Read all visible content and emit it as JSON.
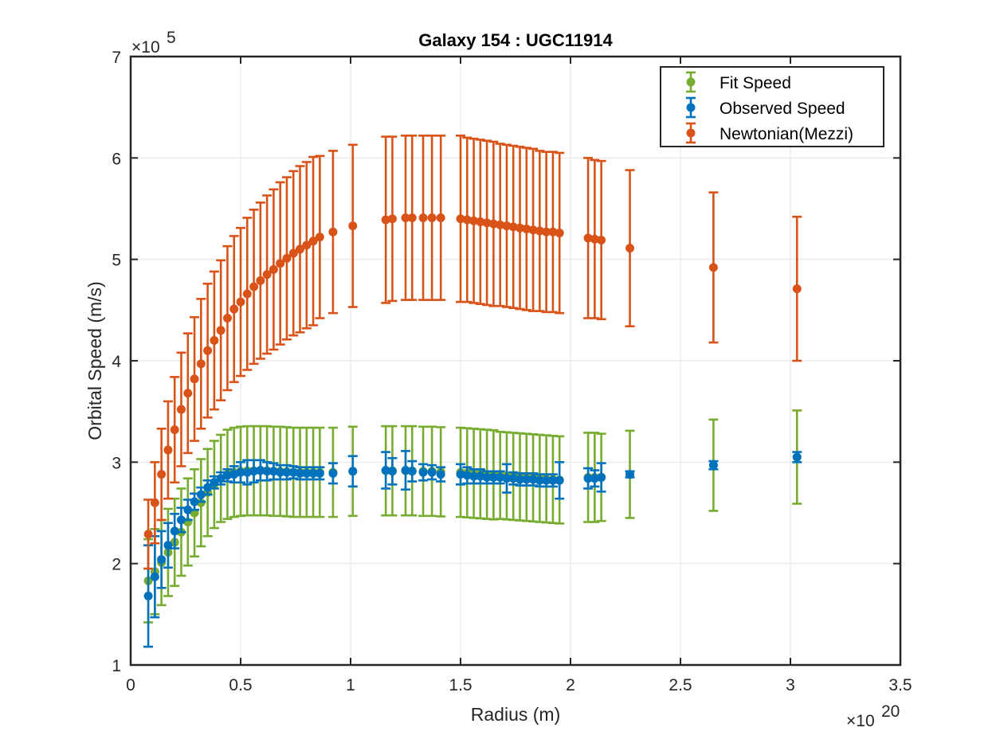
{
  "chart_data": {
    "type": "scatter",
    "title": "Galaxy 154 : UGC11914",
    "xlabel": "Radius (m)",
    "ylabel": "Orbital Speed (m/s)",
    "x_exponent_label": "×10",
    "x_exponent_power": "20",
    "y_exponent_label": "×10",
    "y_exponent_power": "5",
    "xlim": [
      0,
      3.5
    ],
    "ylim": [
      1,
      7
    ],
    "x_scale_factor": "1e20",
    "y_scale_factor": "1e5",
    "xticks": [
      0,
      0.5,
      1,
      1.5,
      2,
      2.5,
      3,
      3.5
    ],
    "xtick_labels": [
      "0",
      "0.5",
      "1",
      "1.5",
      "2",
      "2.5",
      "3",
      "3.5"
    ],
    "yticks": [
      1,
      2,
      3,
      4,
      5,
      6,
      7
    ],
    "ytick_labels": [
      "1",
      "2",
      "3",
      "4",
      "5",
      "6",
      "7"
    ],
    "grid": true,
    "legend_position": "top-right",
    "x": [
      0.08,
      0.11,
      0.14,
      0.17,
      0.2,
      0.23,
      0.26,
      0.29,
      0.32,
      0.35,
      0.38,
      0.41,
      0.44,
      0.47,
      0.5,
      0.53,
      0.56,
      0.59,
      0.62,
      0.65,
      0.68,
      0.71,
      0.74,
      0.77,
      0.8,
      0.83,
      0.86,
      0.92,
      1.01,
      1.16,
      1.19,
      1.25,
      1.28,
      1.33,
      1.37,
      1.41,
      1.5,
      1.53,
      1.56,
      1.59,
      1.62,
      1.65,
      1.68,
      1.71,
      1.74,
      1.77,
      1.8,
      1.83,
      1.86,
      1.89,
      1.92,
      1.95,
      2.08,
      2.11,
      2.14,
      2.27,
      2.65,
      3.03
    ],
    "series": [
      {
        "name": "Fit Speed",
        "color": "#77AC30",
        "values": [
          1.83,
          1.92,
          2.01,
          2.11,
          2.21,
          2.31,
          2.41,
          2.5,
          2.6,
          2.7,
          2.78,
          2.84,
          2.88,
          2.9,
          2.91,
          2.915,
          2.915,
          2.915,
          2.915,
          2.91,
          2.91,
          2.905,
          2.9,
          2.9,
          2.9,
          2.9,
          2.9,
          2.9,
          2.91,
          2.915,
          2.915,
          2.915,
          2.915,
          2.91,
          2.91,
          2.905,
          2.9,
          2.895,
          2.89,
          2.885,
          2.88,
          2.875,
          2.87,
          2.865,
          2.86,
          2.855,
          2.85,
          2.845,
          2.84,
          2.835,
          2.83,
          2.825,
          2.85,
          2.85,
          2.85,
          2.88,
          2.97,
          3.05
        ],
        "errors": [
          0.41,
          0.42,
          0.42,
          0.43,
          0.43,
          0.43,
          0.43,
          0.43,
          0.43,
          0.43,
          0.43,
          0.43,
          0.44,
          0.44,
          0.44,
          0.44,
          0.44,
          0.44,
          0.44,
          0.44,
          0.44,
          0.44,
          0.44,
          0.44,
          0.44,
          0.44,
          0.44,
          0.44,
          0.44,
          0.44,
          0.44,
          0.44,
          0.44,
          0.44,
          0.44,
          0.44,
          0.44,
          0.44,
          0.44,
          0.44,
          0.44,
          0.44,
          0.43,
          0.43,
          0.43,
          0.43,
          0.43,
          0.43,
          0.43,
          0.43,
          0.43,
          0.43,
          0.44,
          0.44,
          0.43,
          0.43,
          0.45,
          0.46
        ]
      },
      {
        "name": "Observed Speed",
        "color": "#0072BD",
        "values": [
          1.68,
          1.87,
          2.04,
          2.18,
          2.32,
          2.43,
          2.53,
          2.61,
          2.68,
          2.75,
          2.8,
          2.84,
          2.87,
          2.88,
          2.9,
          2.9,
          2.91,
          2.92,
          2.91,
          2.91,
          2.9,
          2.9,
          2.9,
          2.89,
          2.89,
          2.89,
          2.89,
          2.89,
          2.91,
          2.92,
          2.91,
          2.92,
          2.91,
          2.9,
          2.9,
          2.88,
          2.88,
          2.87,
          2.86,
          2.86,
          2.85,
          2.85,
          2.85,
          2.84,
          2.84,
          2.83,
          2.83,
          2.83,
          2.82,
          2.82,
          2.82,
          2.82,
          2.84,
          2.84,
          2.85,
          2.88,
          2.97,
          3.05
        ],
        "errors": [
          0.5,
          0.4,
          0.28,
          0.22,
          0.17,
          0.12,
          0.1,
          0.08,
          0.07,
          0.07,
          0.06,
          0.06,
          0.06,
          0.08,
          0.1,
          0.12,
          0.11,
          0.1,
          0.09,
          0.08,
          0.07,
          0.07,
          0.06,
          0.06,
          0.06,
          0.06,
          0.06,
          0.1,
          0.15,
          0.18,
          0.13,
          0.19,
          0.1,
          0.08,
          0.07,
          0.07,
          0.1,
          0.08,
          0.07,
          0.07,
          0.06,
          0.06,
          0.06,
          0.14,
          0.06,
          0.06,
          0.06,
          0.06,
          0.06,
          0.06,
          0.06,
          0.18,
          0.1,
          0.08,
          0.14,
          0.03,
          0.04,
          0.05
        ]
      },
      {
        "name": "Newtonian(Mezzi)",
        "color": "#D95319",
        "values": [
          2.29,
          2.6,
          2.88,
          3.12,
          3.32,
          3.52,
          3.68,
          3.82,
          3.97,
          4.1,
          4.2,
          4.3,
          4.42,
          4.51,
          4.58,
          4.66,
          4.73,
          4.79,
          4.85,
          4.9,
          4.96,
          5.01,
          5.06,
          5.1,
          5.14,
          5.18,
          5.22,
          5.27,
          5.33,
          5.39,
          5.4,
          5.41,
          5.41,
          5.41,
          5.41,
          5.41,
          5.4,
          5.39,
          5.38,
          5.37,
          5.36,
          5.35,
          5.34,
          5.33,
          5.32,
          5.31,
          5.3,
          5.29,
          5.28,
          5.27,
          5.27,
          5.26,
          5.21,
          5.2,
          5.19,
          5.11,
          4.92,
          4.71
        ],
        "errors": [
          0.34,
          0.4,
          0.45,
          0.48,
          0.52,
          0.56,
          0.59,
          0.61,
          0.64,
          0.66,
          0.68,
          0.69,
          0.71,
          0.72,
          0.73,
          0.75,
          0.76,
          0.77,
          0.78,
          0.79,
          0.8,
          0.8,
          0.81,
          0.82,
          0.82,
          0.83,
          0.8,
          0.8,
          0.8,
          0.82,
          0.81,
          0.81,
          0.81,
          0.81,
          0.81,
          0.81,
          0.82,
          0.81,
          0.81,
          0.81,
          0.81,
          0.81,
          0.8,
          0.8,
          0.8,
          0.8,
          0.8,
          0.8,
          0.79,
          0.79,
          0.79,
          0.79,
          0.79,
          0.78,
          0.78,
          0.77,
          0.74,
          0.71
        ]
      }
    ]
  }
}
